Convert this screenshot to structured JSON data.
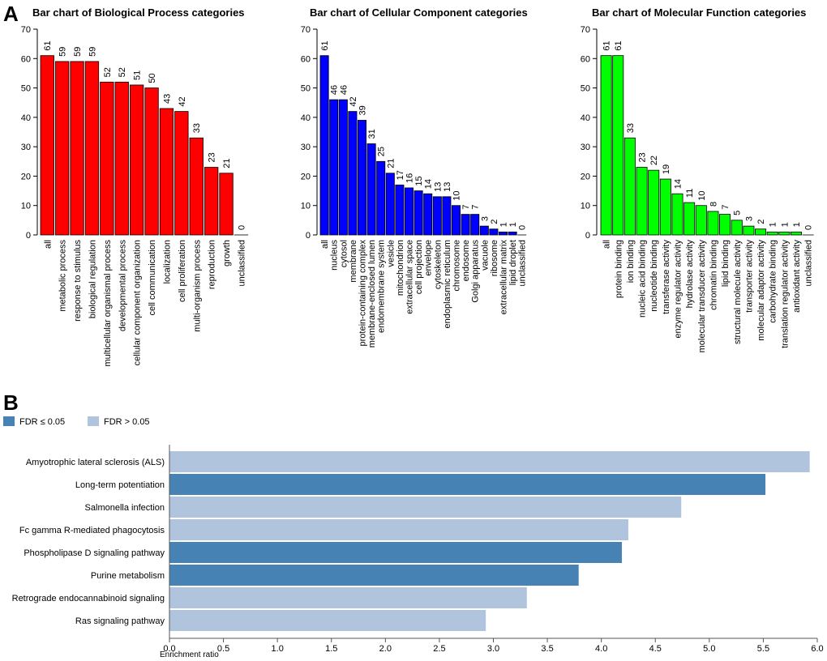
{
  "panel_labels": {
    "a": "A",
    "b": "B"
  },
  "chart_data": [
    {
      "type": "bar",
      "title": "Bar chart of Biological Process categories",
      "categories": [
        "all",
        "metabolic process",
        "response to stimulus",
        "biological regulation",
        "multicellular organismal process",
        "developmental process",
        "cellular component organization",
        "cell communication",
        "localization",
        "cell proliferation",
        "multi-organism process",
        "reproduction",
        "growth",
        "unclassified"
      ],
      "values": [
        61,
        59,
        59,
        59,
        52,
        52,
        51,
        50,
        43,
        42,
        33,
        23,
        21,
        0
      ],
      "ylim": [
        0,
        70
      ],
      "yticks": [
        0,
        10,
        20,
        30,
        40,
        50,
        60,
        70
      ],
      "color": "#ff0000"
    },
    {
      "type": "bar",
      "title": "Bar chart of Cellular Component categories",
      "categories": [
        "all",
        "nucleus",
        "cytosol",
        "membrane",
        "protein-containing complex",
        "membrane-enclosed lumen",
        "endomembrane system",
        "vesicle",
        "mitochondrion",
        "extracellular space",
        "cell projection",
        "envelope",
        "cytoskeleton",
        "endoplasmic reticulum",
        "chromosome",
        "endosome",
        "Golgi apparatus",
        "vacuole",
        "ribosome",
        "extracellular matrix",
        "lipid droplet",
        "unclassified"
      ],
      "values": [
        61,
        46,
        46,
        42,
        39,
        31,
        25,
        21,
        17,
        16,
        15,
        14,
        13,
        13,
        10,
        7,
        7,
        3,
        2,
        1,
        1,
        0
      ],
      "ylim": [
        0,
        70
      ],
      "yticks": [
        0,
        10,
        20,
        30,
        40,
        50,
        60,
        70
      ],
      "color": "#0000ff"
    },
    {
      "type": "bar",
      "title": "Bar chart of Molecular Function categories",
      "categories": [
        "all",
        "protein binding",
        "ion binding",
        "nucleic acid binding",
        "nucleotide binding",
        "transferase activity",
        "enzyme regulator activity",
        "hydrolase activity",
        "molecular transducer activity",
        "chromatin binding",
        "lipid binding",
        "structural molecule activity",
        "transporter activity",
        "molecular adaptor activity",
        "carbohydrate binding",
        "translation regulator activity",
        "antioxidant activity",
        "unclassified"
      ],
      "values": [
        61,
        61,
        33,
        23,
        22,
        19,
        14,
        11,
        10,
        8,
        7,
        5,
        3,
        2,
        1,
        1,
        1,
        0
      ],
      "ylim": [
        0,
        70
      ],
      "yticks": [
        0,
        10,
        20,
        30,
        40,
        50,
        60,
        70
      ],
      "color": "#00ff00"
    },
    {
      "type": "bar",
      "orientation": "horizontal",
      "title": "",
      "xlabel": "Enrichment ratio",
      "xlim": [
        0,
        6
      ],
      "xticks": [
        "0.0",
        "0.5",
        "1.0",
        "1.5",
        "2.0",
        "2.5",
        "3.0",
        "3.5",
        "4.0",
        "4.5",
        "5.0",
        "5.5",
        "6.0"
      ],
      "legend": [
        {
          "label": "FDR ≤ 0.05",
          "color": "#4682b4"
        },
        {
          "label": "FDR > 0.05",
          "color": "#b0c4de"
        }
      ],
      "categories": [
        "Amyotrophic lateral sclerosis (ALS)",
        "Long-term potentiation",
        "Salmonella infection",
        "Fc gamma R-mediated phagocytosis",
        "Phospholipase D signaling pathway",
        "Purine metabolism",
        "Retrograde endocannabinoid signaling",
        "Ras signaling pathway"
      ],
      "values": [
        5.93,
        5.52,
        4.74,
        4.25,
        4.19,
        3.79,
        3.31,
        2.93
      ],
      "significant": [
        false,
        true,
        false,
        false,
        true,
        true,
        false,
        false
      ]
    }
  ]
}
